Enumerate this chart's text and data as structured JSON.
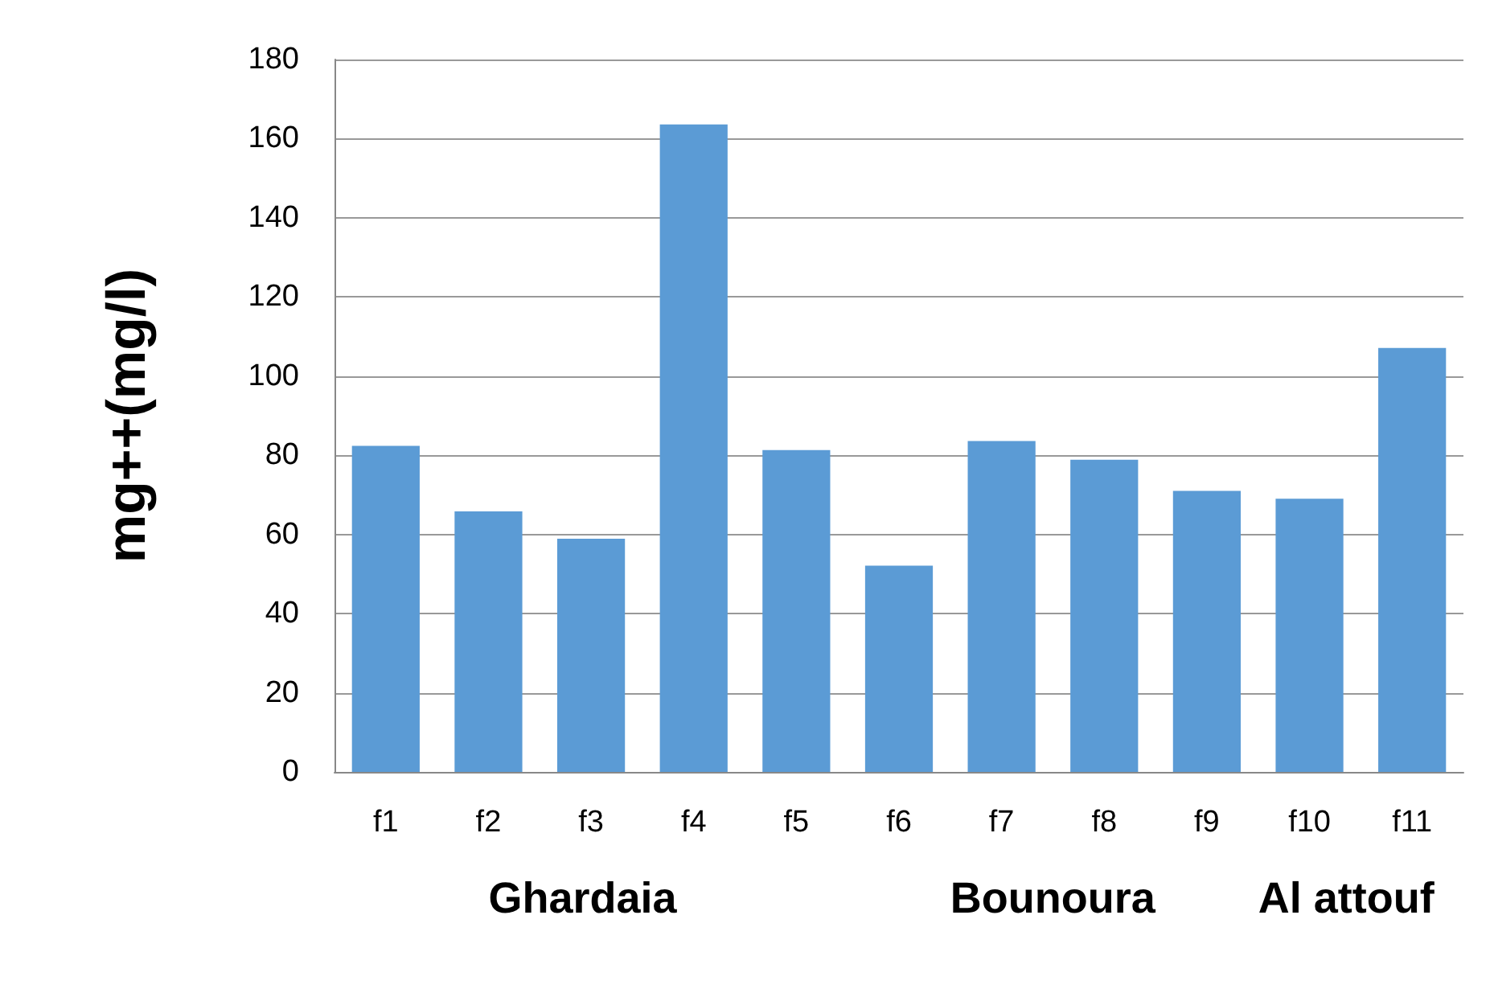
{
  "chart_data": {
    "type": "bar",
    "ylabel": "mg++(mg/l)",
    "categories": [
      "f1",
      "f2",
      "f3",
      "f4",
      "f5",
      "f6",
      "f7",
      "f8",
      "f9",
      "f10",
      "f11"
    ],
    "values": [
      82.4,
      65.8,
      58.9,
      163.6,
      81.3,
      52.1,
      83.6,
      78.9,
      71,
      69,
      107.1
    ],
    "color": "#5b9bd5",
    "ylim": [
      0,
      180
    ],
    "yticks": [
      0,
      20,
      40,
      60,
      80,
      100,
      120,
      140,
      160,
      180
    ],
    "grid": "y",
    "annotations": [
      "Ghardaia",
      "Bounoura",
      "Al attouf"
    ]
  }
}
